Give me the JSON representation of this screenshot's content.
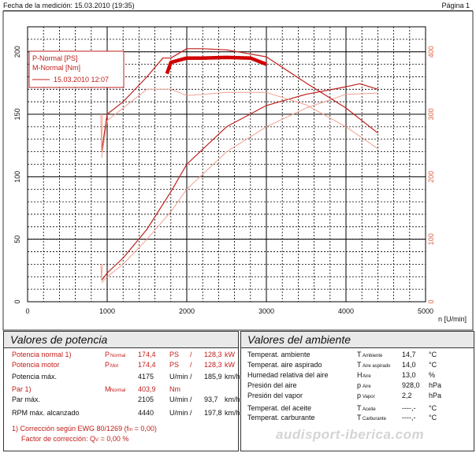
{
  "header": {
    "left": "Fecha de la medición: 15.03.2010 (19:35)",
    "right": "Página 1"
  },
  "chart_data": {
    "type": "line",
    "x_unit_label": "n [U/min]",
    "x_ticks": [
      "0",
      "1000",
      "2000",
      "3000",
      "4000",
      "5000"
    ],
    "y_left_ticks": [
      "0",
      "50",
      "100",
      "150",
      "200"
    ],
    "y_right_ticks": [
      "0",
      "100",
      "200",
      "300",
      "400"
    ],
    "xlim": [
      0,
      5000
    ],
    "ylim_left": [
      0,
      220
    ],
    "ylim_right": [
      0,
      440
    ],
    "legend": [
      "P-Normal [PS]",
      "M-Normal [Nm]",
      "15.03.2010 12:07"
    ],
    "series": [
      {
        "name": "P-Normal [PS]",
        "axis": "left",
        "color": "#c0201c",
        "x": [
          930,
          1000,
          1200,
          1500,
          1800,
          2000,
          2500,
          3000,
          3500,
          4000,
          4175,
          4400
        ],
        "y": [
          17,
          23,
          35,
          58,
          88,
          110,
          140,
          157,
          166,
          172,
          174.4,
          170
        ]
      },
      {
        "name": "P-Normal [PS]",
        "axis": "left",
        "color": "#f0a090",
        "x": [
          930,
          1000,
          1200,
          1500,
          1800,
          2000,
          2500,
          3000,
          3500,
          4000,
          4400
        ],
        "y": [
          15,
          20,
          30,
          50,
          72,
          90,
          120,
          140,
          155,
          166,
          167
        ]
      },
      {
        "name": "M-Normal [Nm]",
        "axis": "right",
        "color": "#c0201c",
        "x": [
          930,
          1000,
          1200,
          1500,
          1700,
          1800,
          2000,
          2200,
          2500,
          3000,
          3500,
          4000,
          4400
        ],
        "y": [
          240,
          300,
          320,
          360,
          390,
          390,
          405,
          405,
          403,
          392,
          350,
          310,
          270
        ]
      },
      {
        "name": "M-Normal [Nm]",
        "axis": "right",
        "color": "#f0a090",
        "x": [
          930,
          1000,
          1200,
          1500,
          1800,
          2000,
          2500,
          3000,
          3500,
          4000,
          4400
        ],
        "y": [
          230,
          290,
          310,
          340,
          340,
          330,
          335,
          335,
          315,
          280,
          245
        ]
      },
      {
        "name": "",
        "axis": "right",
        "color": "#d00000",
        "x": [
          1750,
          1800,
          2000,
          2200,
          2500,
          2800,
          3000
        ],
        "y": [
          365,
          383,
          390,
          390,
          391,
          390,
          380
        ]
      }
    ]
  },
  "power": {
    "title": "Valores de potencia",
    "rows": [
      {
        "label": "Potencia normal 1)",
        "sym": "P",
        "sub": "Normal",
        "v1": "174,4",
        "u1": "PS",
        "sep": "/",
        "v2": "128,3",
        "u2": "kW",
        "red": true
      },
      {
        "label": "Potencia motor",
        "sym": "P",
        "sub": "Mot",
        "v1": "174,4",
        "u1": "PS",
        "sep": "/",
        "v2": "128,3",
        "u2": "kW",
        "red": true
      },
      {
        "label": "Potencia máx.",
        "sym": "",
        "sub": "",
        "v1": "4175",
        "u1": "U/min",
        "sep": "/",
        "v2": "185,9",
        "u2": "km/h",
        "red": false
      },
      {
        "label": "Par 1)",
        "sym": "M",
        "sub": "Normal",
        "v1": "403,9",
        "u1": "Nm",
        "sep": "",
        "v2": "",
        "u2": "",
        "red": true
      },
      {
        "label": "Par máx.",
        "sym": "",
        "sub": "",
        "v1": "2105",
        "u1": "U/min",
        "sep": "/",
        "v2": "93,7",
        "u2": "km/h",
        "red": false
      },
      {
        "label": "RPM máx. alcanzado",
        "sym": "",
        "sub": "",
        "v1": "4440",
        "u1": "U/min",
        "sep": "/",
        "v2": "197,8",
        "u2": "km/h",
        "red": false
      }
    ],
    "footnote1": "1) Corrección según EWG 80/1269 (f",
    "footnote1_sub": "m",
    "footnote1_end": " = 0,00)",
    "footnote2": "Factor de corrección: Q",
    "footnote2_sub": "V",
    "footnote2_end": " = 0,00 %"
  },
  "ambient": {
    "title": "Valores del ambiente",
    "rows": [
      {
        "label": "Temperat. ambiente",
        "sym": "T",
        "sub": "Ambiente",
        "value": "14,7",
        "unit": "°C"
      },
      {
        "label": "Temperat. aire aspirado",
        "sym": "T",
        "sub": "Aire aspirado",
        "value": "14,0",
        "unit": "°C"
      },
      {
        "label": "Humedad relativa del aire",
        "sym": "H",
        "sub": "Aire",
        "value": "13,0",
        "unit": "%"
      },
      {
        "label": "Presión del aire",
        "sym": "p",
        "sub": "Aire",
        "value": "928,0",
        "unit": "hPa"
      },
      {
        "label": "Presión del vapor",
        "sym": "p",
        "sub": "Vapor",
        "value": "2,2",
        "unit": "hPa"
      },
      {
        "label": "Temperat. del aceite",
        "sym": "T",
        "sub": "Aceite",
        "value": "----,-",
        "unit": "°C"
      },
      {
        "label": "Temperat. carburante",
        "sym": "T",
        "sub": "Carburante",
        "value": "----,-",
        "unit": "°C"
      }
    ]
  },
  "watermark": "audisport-iberica.com",
  "colors": {
    "curve_dark": "#c0201c",
    "curve_light": "#f0a090",
    "axis_right": "#e06040"
  }
}
